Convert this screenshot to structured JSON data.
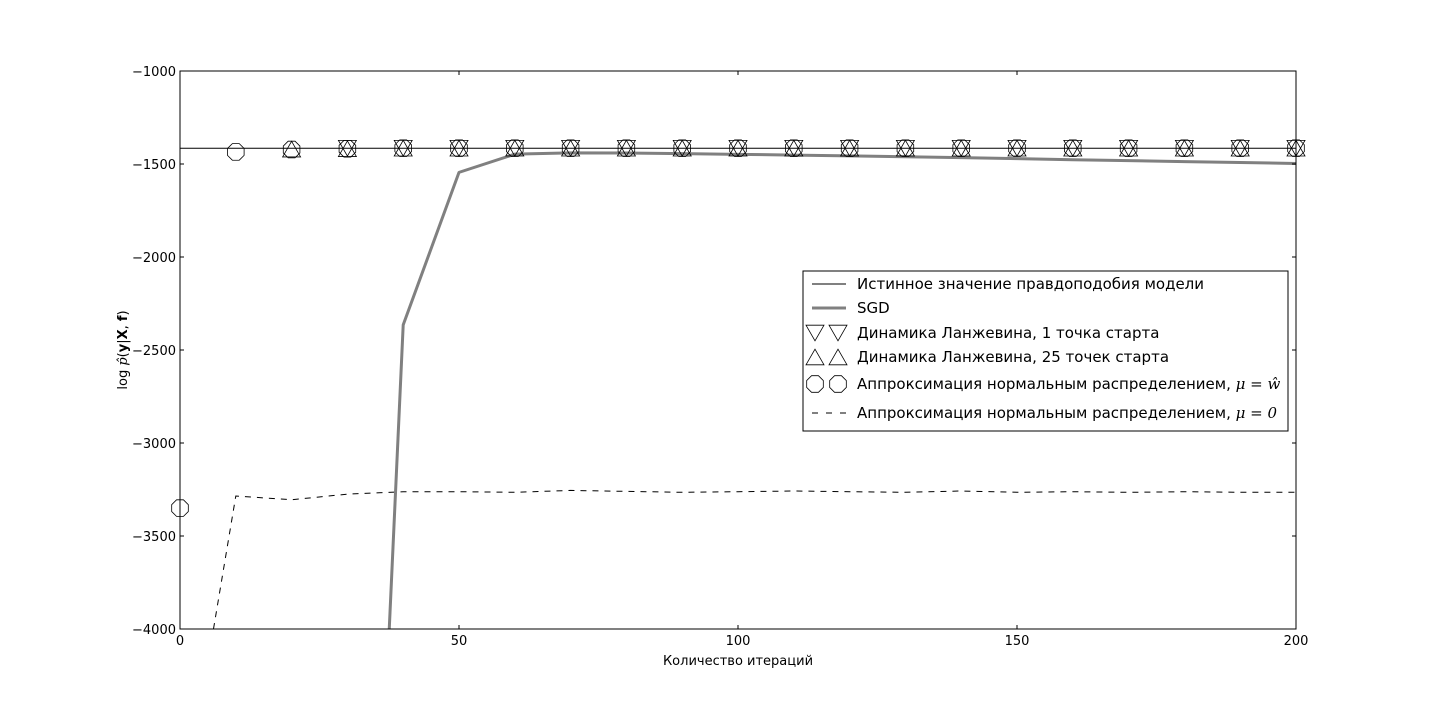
{
  "chart_data": {
    "type": "line",
    "title": "",
    "xlabel": "Количество итераций",
    "ylabel_parts": [
      "log ",
      "p̂",
      "(",
      "y",
      "|",
      "X",
      ", ",
      "f",
      ")"
    ],
    "xlim": [
      0,
      200
    ],
    "ylim": [
      -4000,
      -1000
    ],
    "xticks": [
      0,
      50,
      100,
      150,
      200
    ],
    "yticks": [
      -4000,
      -3500,
      -3000,
      -2500,
      -2000,
      -1500,
      -1000
    ],
    "xtick_labels": [
      "0",
      "50",
      "100",
      "150",
      "200"
    ],
    "ytick_labels": [
      "−4000",
      "−3500",
      "−3000",
      "−2500",
      "−2000",
      "−1500",
      "−1000"
    ],
    "grid": false,
    "legend_position": "center-right",
    "series": [
      {
        "key": "true_value",
        "name": "Истинное значение правдоподобия модели",
        "style": "solid-thin",
        "color": "#000000",
        "x": [
          0,
          200
        ],
        "y": [
          -1415,
          -1415
        ]
      },
      {
        "key": "sgd",
        "name": "SGD",
        "style": "solid-thick",
        "color": "#808080",
        "x": [
          37.5,
          40,
          50,
          60,
          70,
          80,
          90,
          100,
          110,
          120,
          130,
          140,
          150,
          160,
          170,
          180,
          190,
          200
        ],
        "y": [
          -4000,
          -2365,
          -1545,
          -1447,
          -1440,
          -1441,
          -1444,
          -1448,
          -1452,
          -1456,
          -1461,
          -1466,
          -1471,
          -1477,
          -1482,
          -1487,
          -1492,
          -1497
        ]
      },
      {
        "key": "langevin_1",
        "name": "Динамика Ланжевина, 1 точка старта",
        "style": "marker-triangle-down",
        "color": "#000000",
        "x": [
          30,
          40,
          50,
          60,
          70,
          80,
          90,
          100,
          110,
          120,
          130,
          140,
          150,
          160,
          170,
          180,
          190,
          200
        ],
        "y": [
          -1415,
          -1415,
          -1415,
          -1415,
          -1415,
          -1415,
          -1415,
          -1415,
          -1415,
          -1415,
          -1415,
          -1415,
          -1415,
          -1415,
          -1415,
          -1415,
          -1415,
          -1415
        ]
      },
      {
        "key": "langevin_25",
        "name": "Динамика Ланжевина, 25 точек старта",
        "style": "marker-triangle-up",
        "color": "#000000",
        "x": [
          20,
          30,
          40,
          50,
          60,
          70,
          80,
          90,
          100,
          110,
          120,
          130,
          140,
          150,
          160,
          170,
          180,
          190,
          200
        ],
        "y": [
          -1420,
          -1418,
          -1415,
          -1415,
          -1415,
          -1415,
          -1415,
          -1415,
          -1415,
          -1415,
          -1415,
          -1415,
          -1415,
          -1415,
          -1415,
          -1415,
          -1415,
          -1415,
          -1415
        ]
      },
      {
        "key": "normal_w",
        "name_text": "Аппроксимация нормальным распределением, ",
        "name_math": "μ = ŵ",
        "style": "marker-octagon",
        "color": "#000000",
        "x": [
          0,
          10,
          20,
          30,
          40,
          50,
          60,
          70,
          80,
          90,
          100,
          110,
          120,
          130,
          140,
          150,
          160,
          170,
          180,
          190,
          200
        ],
        "y": [
          -3350,
          -1435,
          -1422,
          -1418,
          -1415,
          -1415,
          -1415,
          -1415,
          -1415,
          -1415,
          -1415,
          -1415,
          -1415,
          -1415,
          -1415,
          -1415,
          -1415,
          -1415,
          -1415,
          -1415,
          -1415
        ]
      },
      {
        "key": "normal_0",
        "name_text": "Аппроксимация нормальным распределением, ",
        "name_math": "μ = 0",
        "style": "dashed",
        "color": "#000000",
        "x": [
          6,
          10,
          20,
          30,
          40,
          50,
          60,
          70,
          80,
          90,
          100,
          110,
          120,
          130,
          140,
          150,
          160,
          170,
          180,
          190,
          200
        ],
        "y": [
          -4000,
          -3285,
          -3305,
          -3275,
          -3262,
          -3262,
          -3265,
          -3255,
          -3260,
          -3265,
          -3262,
          -3258,
          -3262,
          -3265,
          -3258,
          -3265,
          -3262,
          -3265,
          -3262,
          -3265,
          -3265
        ]
      }
    ]
  }
}
